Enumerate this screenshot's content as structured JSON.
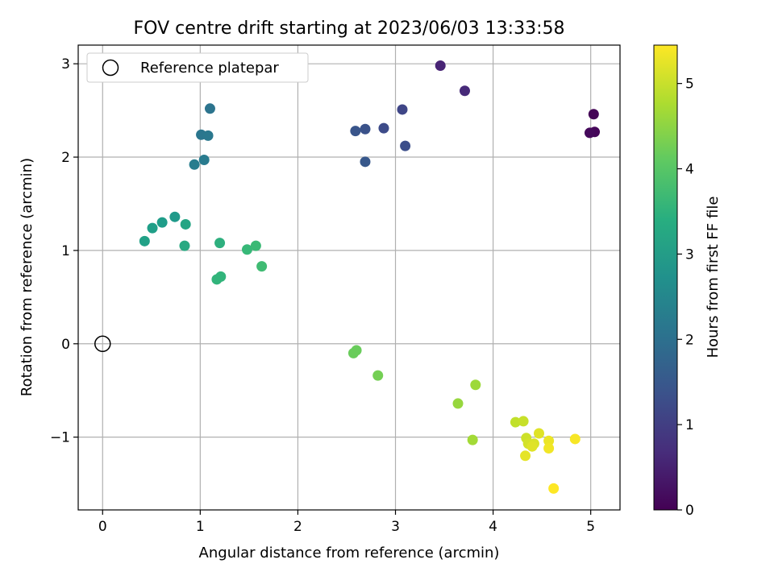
{
  "chart_data": {
    "type": "scatter",
    "title": "FOV centre drift starting at 2023/06/03 13:33:58",
    "xlabel": "Angular distance from reference (arcmin)",
    "ylabel": "Rotation from reference (arcmin)",
    "xlim": [
      -0.25,
      5.3
    ],
    "ylim": [
      -1.78,
      3.2
    ],
    "xticks": [
      0,
      1,
      2,
      3,
      4,
      5
    ],
    "yticks": [
      -1,
      0,
      1,
      2,
      3
    ],
    "grid": true,
    "colormap": "viridis",
    "colorbar": {
      "label": "Hours from first FF file",
      "range": [
        0,
        5.45
      ],
      "ticks": [
        0,
        1,
        2,
        3,
        4,
        5
      ]
    },
    "legend": {
      "position": "upper-left",
      "entries": [
        {
          "label": "Reference platepar",
          "marker": "open-circle"
        }
      ]
    },
    "reference_point": {
      "x": 0,
      "y": 0
    },
    "points": [
      {
        "x": 5.03,
        "y": 2.46,
        "c": 0.03
      },
      {
        "x": 5.04,
        "y": 2.27,
        "c": 0.08
      },
      {
        "x": 4.99,
        "y": 2.26,
        "c": 0.12
      },
      {
        "x": 3.46,
        "y": 2.98,
        "c": 0.55
      },
      {
        "x": 3.71,
        "y": 2.71,
        "c": 0.65
      },
      {
        "x": 3.07,
        "y": 2.51,
        "c": 1.15
      },
      {
        "x": 2.88,
        "y": 2.31,
        "c": 1.25
      },
      {
        "x": 3.1,
        "y": 2.12,
        "c": 1.3
      },
      {
        "x": 2.69,
        "y": 2.3,
        "c": 1.38
      },
      {
        "x": 2.59,
        "y": 2.28,
        "c": 1.45
      },
      {
        "x": 2.69,
        "y": 1.95,
        "c": 1.5
      },
      {
        "x": 1.1,
        "y": 2.52,
        "c": 2.1
      },
      {
        "x": 1.01,
        "y": 2.24,
        "c": 2.15
      },
      {
        "x": 1.08,
        "y": 2.23,
        "c": 2.2
      },
      {
        "x": 1.04,
        "y": 1.97,
        "c": 2.25
      },
      {
        "x": 0.94,
        "y": 1.92,
        "c": 2.3
      },
      {
        "x": 0.74,
        "y": 1.36,
        "c": 2.95
      },
      {
        "x": 0.61,
        "y": 1.3,
        "c": 3.0
      },
      {
        "x": 0.51,
        "y": 1.24,
        "c": 3.05
      },
      {
        "x": 0.43,
        "y": 1.1,
        "c": 3.1
      },
      {
        "x": 0.85,
        "y": 1.28,
        "c": 3.2
      },
      {
        "x": 0.84,
        "y": 1.05,
        "c": 3.3
      },
      {
        "x": 1.2,
        "y": 1.08,
        "c": 3.45
      },
      {
        "x": 1.21,
        "y": 0.72,
        "c": 3.55
      },
      {
        "x": 1.17,
        "y": 0.69,
        "c": 3.55
      },
      {
        "x": 1.48,
        "y": 1.01,
        "c": 3.65
      },
      {
        "x": 1.57,
        "y": 1.05,
        "c": 3.7
      },
      {
        "x": 1.63,
        "y": 0.83,
        "c": 3.75
      },
      {
        "x": 2.6,
        "y": -0.07,
        "c": 4.2
      },
      {
        "x": 2.57,
        "y": -0.1,
        "c": 4.2
      },
      {
        "x": 2.82,
        "y": -0.34,
        "c": 4.3
      },
      {
        "x": 3.64,
        "y": -0.64,
        "c": 4.6
      },
      {
        "x": 3.82,
        "y": -0.44,
        "c": 4.65
      },
      {
        "x": 3.79,
        "y": -1.03,
        "c": 4.7
      },
      {
        "x": 4.23,
        "y": -0.84,
        "c": 4.95
      },
      {
        "x": 4.31,
        "y": -0.83,
        "c": 5.0
      },
      {
        "x": 4.34,
        "y": -1.01,
        "c": 5.05
      },
      {
        "x": 4.36,
        "y": -1.07,
        "c": 5.1
      },
      {
        "x": 4.42,
        "y": -1.07,
        "c": 5.15
      },
      {
        "x": 4.4,
        "y": -1.1,
        "c": 5.2
      },
      {
        "x": 4.47,
        "y": -0.96,
        "c": 5.2
      },
      {
        "x": 4.33,
        "y": -1.2,
        "c": 5.25
      },
      {
        "x": 4.57,
        "y": -1.04,
        "c": 5.3
      },
      {
        "x": 4.57,
        "y": -1.12,
        "c": 5.35
      },
      {
        "x": 4.84,
        "y": -1.02,
        "c": 5.4
      },
      {
        "x": 4.62,
        "y": -1.55,
        "c": 5.45
      }
    ]
  }
}
